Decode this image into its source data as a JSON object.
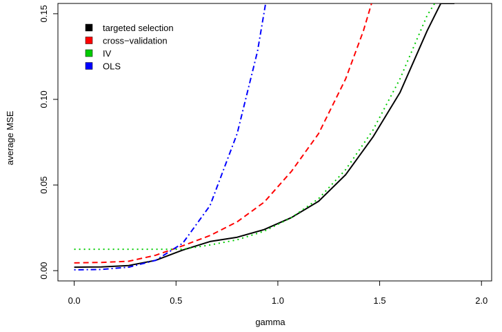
{
  "chart_data": {
    "type": "line",
    "title": "",
    "xlabel": "gamma",
    "ylabel": "average MSE",
    "xlim": [
      -0.08,
      2.05
    ],
    "ylim": [
      -0.006,
      0.156
    ],
    "xticks": [
      "0.0",
      "0.5",
      "1.0",
      "1.5",
      "2.0"
    ],
    "yticks": [
      "0.00",
      "0.05",
      "0.10",
      "0.15"
    ],
    "grid": false,
    "legend_position": "top-left",
    "series": [
      {
        "name": "targeted selection",
        "color": "#000000",
        "dash": "solid",
        "x": [
          0,
          0.133,
          0.267,
          0.4,
          0.533,
          0.667,
          0.8,
          0.933,
          1.067,
          1.2,
          1.333,
          1.467,
          1.6,
          1.733,
          1.8,
          1.867
        ],
        "y": [
          0.002,
          0.0022,
          0.003,
          0.006,
          0.012,
          0.017,
          0.0195,
          0.024,
          0.031,
          0.0405,
          0.056,
          0.078,
          0.104,
          0.14,
          0.156,
          0.156
        ]
      },
      {
        "name": "cross−validation",
        "color": "#ff0000",
        "dash": "dashed",
        "x": [
          0,
          0.133,
          0.267,
          0.4,
          0.533,
          0.667,
          0.8,
          0.933,
          1.067,
          1.2,
          1.333,
          1.42,
          1.46
        ],
        "y": [
          0.0045,
          0.0048,
          0.0055,
          0.009,
          0.0145,
          0.0205,
          0.0285,
          0.04,
          0.058,
          0.08,
          0.112,
          0.14,
          0.156
        ]
      },
      {
        "name": "IV",
        "color": "#00cc00",
        "dash": "dotted",
        "x": [
          0,
          0.133,
          0.267,
          0.4,
          0.533,
          0.667,
          0.8,
          0.933,
          1.067,
          1.2,
          1.333,
          1.467,
          1.6,
          1.733,
          1.77
        ],
        "y": [
          0.0125,
          0.0125,
          0.0125,
          0.0125,
          0.0125,
          0.015,
          0.018,
          0.023,
          0.031,
          0.042,
          0.059,
          0.082,
          0.112,
          0.149,
          0.156
        ]
      },
      {
        "name": "OLS",
        "color": "#0000ff",
        "dash": "dashdot",
        "x": [
          0,
          0.133,
          0.267,
          0.4,
          0.533,
          0.667,
          0.8,
          0.9,
          0.94
        ],
        "y": [
          0.0005,
          0.0007,
          0.002,
          0.006,
          0.016,
          0.038,
          0.08,
          0.128,
          0.156
        ]
      }
    ]
  }
}
